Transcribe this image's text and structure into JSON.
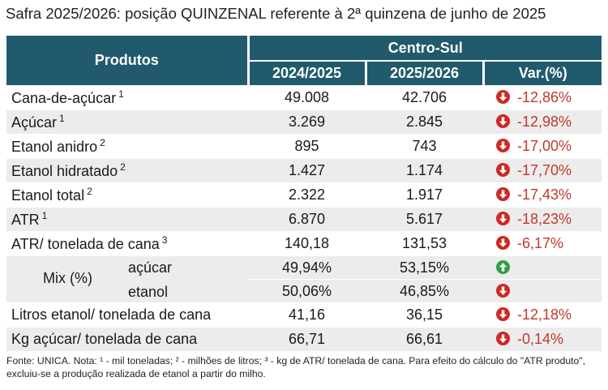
{
  "title": "Safra 2025/2026: posição QUINZENAL referente à 2ª quinzena de junho de 2025",
  "header": {
    "produtos": "Produtos",
    "region": "Centro-Sul",
    "col_prev": "2024/2025",
    "col_curr": "2025/2026",
    "col_var": "Var.(%)"
  },
  "rows": [
    {
      "label": "Cana-de-açúcar",
      "sup": "1",
      "prev": "49.008",
      "curr": "42.706",
      "var": "-12,86%",
      "trend": "down"
    },
    {
      "label": "Açúcar",
      "sup": "1",
      "prev": "3.269",
      "curr": "2.845",
      "var": "-12,98%",
      "trend": "down"
    },
    {
      "label": "Etanol anidro",
      "sup": "2",
      "prev": "895",
      "curr": "743",
      "var": "-17,00%",
      "trend": "down"
    },
    {
      "label": "Etanol hidratado",
      "sup": "2",
      "prev": "1.427",
      "curr": "1.174",
      "var": "-17,70%",
      "trend": "down"
    },
    {
      "label": "Etanol total",
      "sup": "2",
      "prev": "2.322",
      "curr": "1.917",
      "var": "-17,43%",
      "trend": "down"
    },
    {
      "label": "ATR",
      "sup": "1",
      "prev": "6.870",
      "curr": "5.617",
      "var": "-18,23%",
      "trend": "down"
    },
    {
      "label": "ATR/ tonelada de cana",
      "sup": "3",
      "prev": "140,18",
      "curr": "131,53",
      "var": "-6,17%",
      "trend": "down"
    }
  ],
  "mix": {
    "label": "Mix (%)",
    "acucar_label": "açúcar",
    "etanol_label": "etanol",
    "acucar_prev": "49,94%",
    "acucar_curr": "53,15%",
    "acucar_trend": "up",
    "etanol_prev": "50,06%",
    "etanol_curr": "46,85%",
    "etanol_trend": "down"
  },
  "rows_bottom": [
    {
      "label": "Litros etanol/ tonelada de cana",
      "prev": "41,16",
      "curr": "36,15",
      "var": "-12,18%",
      "trend": "down"
    },
    {
      "label": "Kg açúcar/ tonelada de cana",
      "prev": "66,71",
      "curr": "66,61",
      "var": "-0,14%",
      "trend": "down"
    }
  ],
  "footnote": "Fonte: UNICA. Nota: ¹ - mil toneladas; ² - milhões de litros; ³ - kg de ATR/ tonelada de cana. Para efeito do cálculo do \"ATR produto\", excluiu-se a produção realizada de etanol a partir do milho.",
  "colors": {
    "header_bg": "#215a6c",
    "shade": "#ececec",
    "negative_text": "#c0392b",
    "down_arrow": "#d02822",
    "up_arrow": "#2f9e44"
  },
  "icons": {
    "down": "arrow-down-circle-icon",
    "up": "arrow-up-circle-icon"
  }
}
